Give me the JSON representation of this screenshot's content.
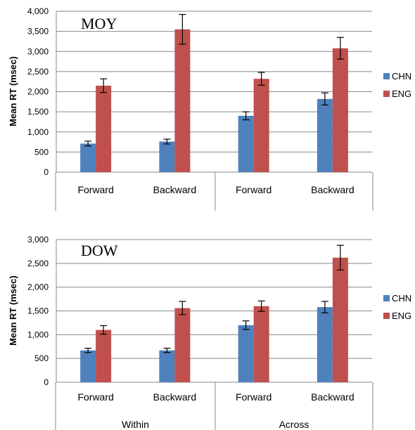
{
  "chart_data": [
    {
      "type": "bar",
      "title": "MOY",
      "ylabel": "Mean RT (msec)",
      "ylim": [
        0,
        4000
      ],
      "ytick_step": 500,
      "yticks": [
        "0",
        "500",
        "1,000",
        "1,500",
        "2,000",
        "2,500",
        "3,000",
        "3,500",
        "4,000"
      ],
      "categories": [
        "Forward",
        "Backward",
        "Forward",
        "Backward"
      ],
      "groups": [
        "Within",
        "Across"
      ],
      "grid": true,
      "legend_position": "right",
      "series": [
        {
          "name": "CHN",
          "color": "#4F81BD",
          "values": [
            710,
            760,
            1400,
            1820
          ],
          "errors": [
            60,
            60,
            100,
            150
          ]
        },
        {
          "name": "ENG",
          "color": "#C0504D",
          "values": [
            2150,
            3550,
            2320,
            3080
          ],
          "errors": [
            170,
            370,
            160,
            270
          ]
        }
      ]
    },
    {
      "type": "bar",
      "title": "DOW",
      "ylabel": "Mean RT (msec)",
      "ylim": [
        0,
        3000
      ],
      "ytick_step": 500,
      "yticks": [
        "0",
        "500",
        "1,000",
        "1,500",
        "2,000",
        "2,500",
        "3,000"
      ],
      "categories": [
        "Forward",
        "Backward",
        "Forward",
        "Backward"
      ],
      "groups": [
        "Within",
        "Across"
      ],
      "grid": true,
      "legend_position": "right",
      "series": [
        {
          "name": "CHN",
          "color": "#4F81BD",
          "values": [
            670,
            670,
            1200,
            1580
          ],
          "errors": [
            45,
            45,
            90,
            120
          ]
        },
        {
          "name": "ENG",
          "color": "#C0504D",
          "values": [
            1100,
            1560,
            1600,
            2620
          ],
          "errors": [
            90,
            140,
            110,
            260
          ]
        }
      ]
    }
  ]
}
